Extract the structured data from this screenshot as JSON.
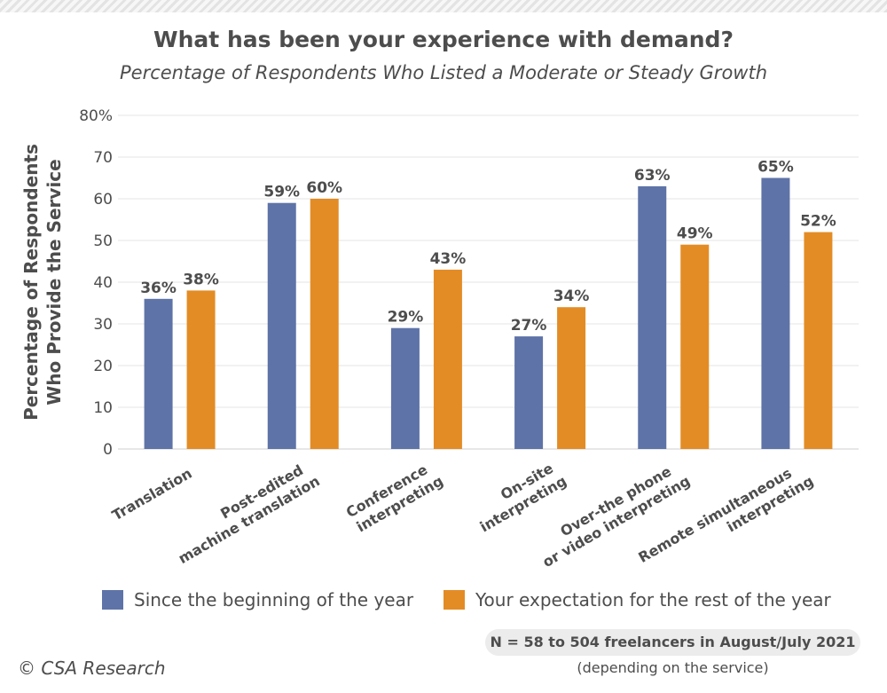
{
  "title": "What has been your experience with demand?",
  "subtitle": "Percentage of Respondents Who Listed a Moderate or Steady Growth",
  "note": {
    "main": "N = 58 to 504 freelancers in August/July 2021",
    "sub": "(depending on the service)"
  },
  "copyright": "© CSA Research",
  "colors": {
    "series1": "#5e73a7",
    "series2": "#e38c25",
    "grid": "#e6e6e6"
  },
  "chart_data": {
    "type": "bar",
    "title": "What has been your experience with demand?",
    "subtitle": "Percentage of Respondents Who Listed a Moderate or Steady Growth",
    "ylabel_lines": [
      "Percentage of Respondents",
      "Who Provide the Service"
    ],
    "ylim": [
      0,
      80
    ],
    "yticks": [
      "0",
      "10",
      "20",
      "30",
      "40",
      "50",
      "60",
      "70",
      "80%"
    ],
    "grid": true,
    "legend_position": "bottom",
    "categories": [
      [
        "Translation"
      ],
      [
        "Post-edited",
        "machine translation"
      ],
      [
        "Conference",
        "interpreting"
      ],
      [
        "On-site",
        "interpreting"
      ],
      [
        "Over-the phone",
        "or video interpreting"
      ],
      [
        "Remote simultaneous",
        "interpreting"
      ]
    ],
    "series": [
      {
        "name": "Since the beginning of the year",
        "values": [
          36,
          59,
          29,
          27,
          63,
          65
        ],
        "labels": [
          "36%",
          "59%",
          "29%",
          "27%",
          "63%",
          "65%"
        ]
      },
      {
        "name": "Your expectation for the rest of the year",
        "values": [
          38,
          60,
          43,
          34,
          49,
          52
        ],
        "labels": [
          "38%",
          "60%",
          "43%",
          "34%",
          "49%",
          "52%"
        ]
      }
    ]
  }
}
